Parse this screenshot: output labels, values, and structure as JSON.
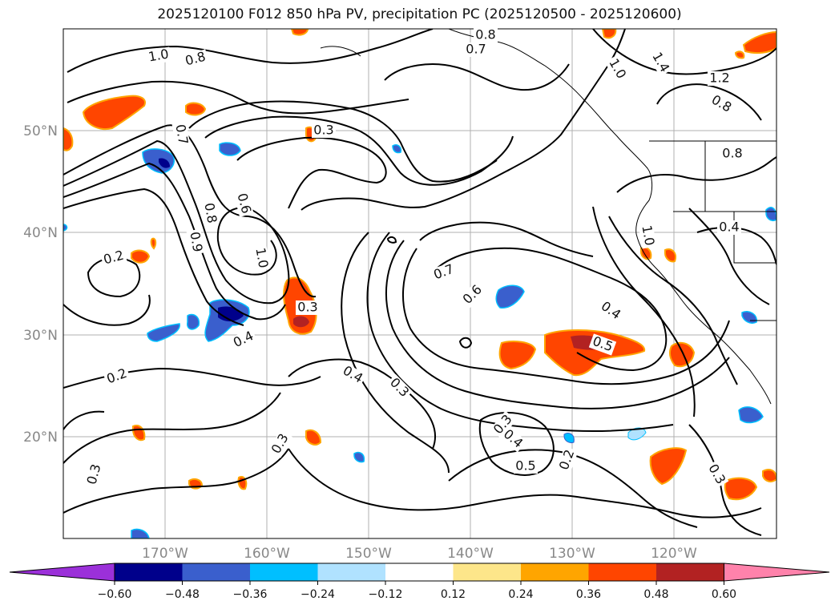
{
  "title": "2025120100 F012 850 hPa PV, precipitation PC (2025120500 - 2025120600)",
  "lat_labels": [
    "50°N",
    "40°N",
    "30°N",
    "20°N"
  ],
  "lon_labels": [
    "170°W",
    "160°W",
    "150°W",
    "140°W",
    "130°W",
    "120°W"
  ],
  "colorbar": {
    "colors": [
      "#9b30d9",
      "#00008b",
      "#3a5fcd",
      "#00bfff",
      "#b0e2ff",
      "#ffffff",
      "#fde68a",
      "#ffa500",
      "#ff4500",
      "#b22222",
      "#ff82ab"
    ],
    "ticks": [
      "−0.60",
      "−0.48",
      "−0.36",
      "−0.24",
      "−0.12",
      "0.12",
      "0.24",
      "0.36",
      "0.48",
      "0.60"
    ]
  },
  "contour_labels": [
    "1.0",
    "0.8",
    "0.7",
    "0.8",
    "1.0",
    "1.4",
    "1.2",
    "0.8",
    "0.8",
    "0.3",
    "0.7",
    "0.6",
    "0.8",
    "0.9",
    "1.0",
    "0.2",
    "0.4",
    "0.3",
    "0.4",
    "0.2",
    "0.3",
    "0.7",
    "0.6",
    "0.4",
    "0.5",
    "0.4",
    "1.0",
    "0.3",
    "0.4",
    "0.5",
    "0.2",
    "0.3",
    "0.3",
    "0.3"
  ]
}
